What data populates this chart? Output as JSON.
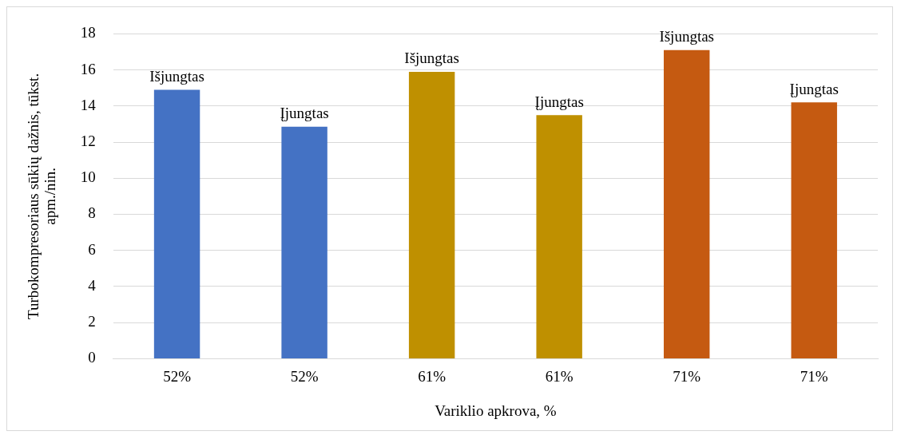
{
  "chart_data": {
    "type": "bar",
    "xlabel": "Variklio apkrova, %",
    "ylabel": "Turbokompresoriaus sūkių dažnis, tūkst. apm./nin.",
    "categories": [
      "52%",
      "52%",
      "61%",
      "61%",
      "71%",
      "71%"
    ],
    "values": [
      14.9,
      12.85,
      15.9,
      13.5,
      17.1,
      14.2
    ],
    "colors": [
      "#4472c4",
      "#4472c4",
      "#bf9000",
      "#bf9000",
      "#c55a11",
      "#c55a11"
    ],
    "value_labels": [
      "Išjungtas",
      "Įjungtas",
      "Išjungtas",
      "Įjungtas",
      "Išjungtas",
      "Įjungtas"
    ],
    "ylim": [
      0,
      18
    ],
    "yticks": [
      0,
      2,
      4,
      6,
      8,
      10,
      12,
      14,
      16,
      18
    ],
    "grid": "y",
    "legend": false
  }
}
